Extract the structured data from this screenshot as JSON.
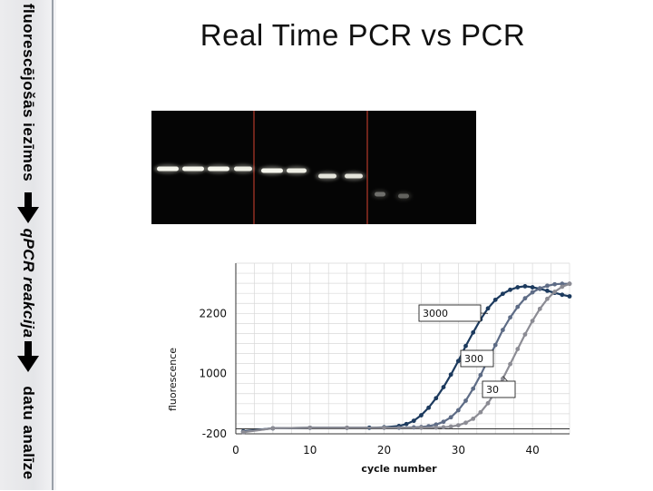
{
  "slide": {
    "title": "Real Time PCR vs PCR",
    "sidebar": {
      "steps": [
        {
          "label": "fluorescējošās iezīmes"
        },
        {
          "label": "qPCR reakcija"
        },
        {
          "label": "datu analīze"
        }
      ]
    }
  },
  "gel": {
    "bands": [
      {
        "lane": 1,
        "intensity": 0.95
      },
      {
        "lane": 2,
        "intensity": 0.95
      },
      {
        "lane": 3,
        "intensity": 0.95
      },
      {
        "lane": 4,
        "intensity": 0.9
      },
      {
        "lane": 5,
        "intensity": 0.95
      },
      {
        "lane": 6,
        "intensity": 0.9
      },
      {
        "lane": 7,
        "intensity": 0.85
      },
      {
        "lane": 8,
        "intensity": 0.85
      },
      {
        "lane": 9,
        "intensity": 0.35
      },
      {
        "lane": 10,
        "intensity": 0.3
      }
    ]
  },
  "chart_data": {
    "type": "line",
    "title": "",
    "xlabel": "cycle number",
    "ylabel": "fluorescence",
    "xlim": [
      0,
      45
    ],
    "ylim": [
      -200,
      3200
    ],
    "xticks": [
      "0",
      "10",
      "20",
      "30",
      "40"
    ],
    "yticks": [
      "-200",
      "1000",
      "2200"
    ],
    "threshold": -100,
    "grid": true,
    "series": [
      {
        "name": "3000",
        "color": "#1c3a5e",
        "x": [
          1,
          5,
          10,
          15,
          18,
          20,
          22,
          23,
          24,
          25,
          26,
          27,
          28,
          29,
          30,
          31,
          32,
          33,
          34,
          35,
          36,
          37,
          38,
          39,
          40,
          41,
          42,
          43,
          44,
          45
        ],
        "y": [
          -150,
          -90,
          -80,
          -80,
          -78,
          -70,
          -45,
          -5,
          60,
          170,
          320,
          510,
          730,
          980,
          1250,
          1550,
          1820,
          2080,
          2300,
          2470,
          2590,
          2670,
          2720,
          2740,
          2720,
          2690,
          2650,
          2610,
          2570,
          2540
        ]
      },
      {
        "name": "300",
        "color": "#5e6c86",
        "x": [
          1,
          5,
          10,
          15,
          20,
          22,
          24,
          25,
          26,
          27,
          28,
          29,
          30,
          31,
          32,
          33,
          34,
          35,
          36,
          37,
          38,
          39,
          40,
          41,
          42,
          43,
          44,
          45
        ],
        "y": [
          -160,
          -90,
          -80,
          -80,
          -80,
          -78,
          -72,
          -65,
          -48,
          -15,
          40,
          130,
          270,
          460,
          700,
          970,
          1270,
          1570,
          1870,
          2120,
          2330,
          2500,
          2620,
          2700,
          2750,
          2780,
          2790,
          2790
        ]
      },
      {
        "name": "30",
        "color": "#8c8c94",
        "x": [
          1,
          5,
          10,
          15,
          20,
          25,
          27,
          28,
          29,
          30,
          31,
          32,
          33,
          34,
          35,
          36,
          37,
          38,
          39,
          40,
          41,
          42,
          43,
          44,
          45
        ],
        "y": [
          -170,
          -90,
          -80,
          -80,
          -80,
          -80,
          -76,
          -70,
          -55,
          -30,
          20,
          100,
          230,
          410,
          640,
          900,
          1190,
          1490,
          1780,
          2050,
          2290,
          2490,
          2630,
          2730,
          2790
        ]
      }
    ]
  }
}
